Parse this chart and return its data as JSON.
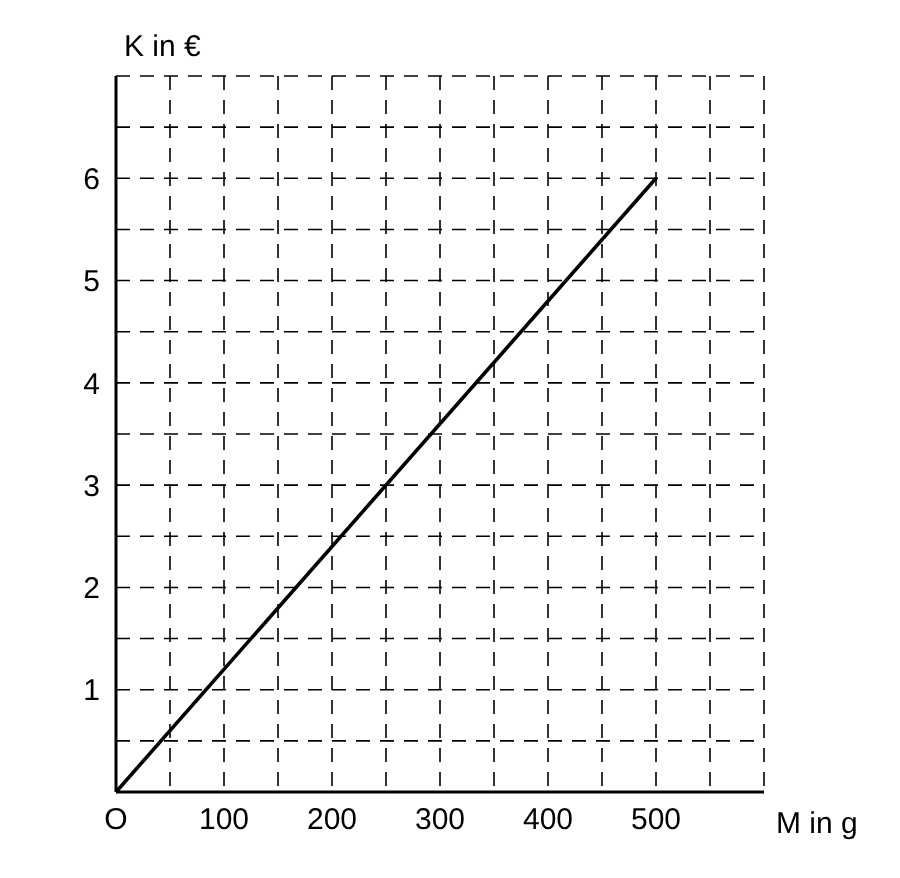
{
  "chart_data": {
    "type": "line",
    "xlabel": "M in g",
    "ylabel": "K in €",
    "x": [
      0,
      500
    ],
    "series": [
      {
        "color": "#000000",
        "values": [
          0,
          6
        ]
      }
    ],
    "xlim": [
      0,
      600
    ],
    "ylim": [
      0,
      7
    ],
    "xticks": [
      {
        "value": 0,
        "label": "O"
      },
      {
        "value": 50,
        "label": null
      },
      100,
      {
        "value": 150,
        "label": null
      },
      200,
      {
        "value": 250,
        "label": null
      },
      300,
      {
        "value": 350,
        "label": null
      },
      400,
      {
        "value": 450,
        "label": null
      },
      500,
      {
        "value": 550,
        "label": null
      },
      {
        "value": 600,
        "label": null
      }
    ],
    "yticks": [
      {
        "value": 0,
        "label": null
      },
      {
        "value": 0.5,
        "label": null
      },
      1,
      {
        "value": 1.5,
        "label": null
      },
      2,
      {
        "value": 2.5,
        "label": null
      },
      3,
      {
        "value": 3.5,
        "label": null
      },
      4,
      {
        "value": 4.5,
        "label": null
      },
      5,
      {
        "value": 5.5,
        "label": null
      },
      6,
      {
        "value": 6.5,
        "label": null
      },
      {
        "value": 7,
        "label": null
      }
    ],
    "grid": true,
    "marker": "none",
    "line_style": "solid"
  }
}
